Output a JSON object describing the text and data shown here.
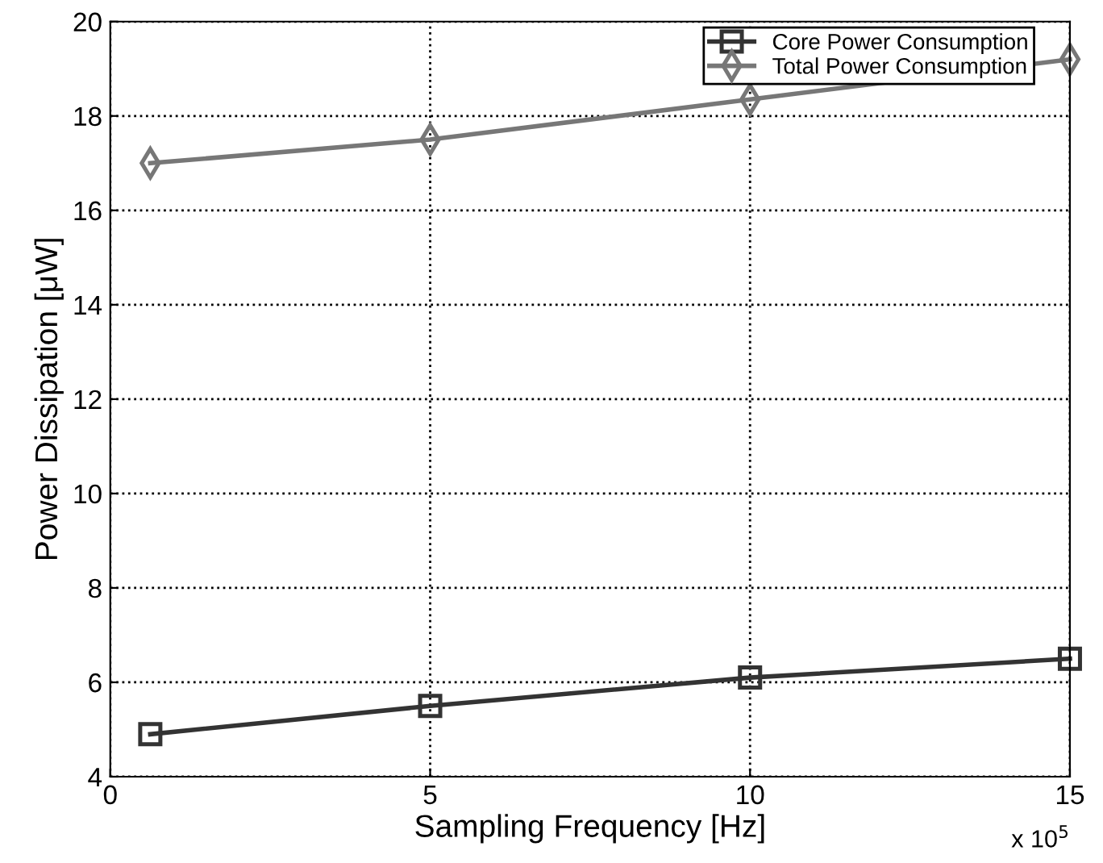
{
  "chart_data": {
    "type": "line",
    "xlabel": "Sampling Frequency [Hz]",
    "ylabel": "Power Dissipation [μW]",
    "x": [
      0.625,
      5,
      10,
      15
    ],
    "series": [
      {
        "name": "Core Power Consumption",
        "color": "#333333",
        "marker": "square",
        "values": [
          4.9,
          5.5,
          6.1,
          6.5
        ]
      },
      {
        "name": "Total Power Consumption",
        "color": "#777777",
        "marker": "diamond",
        "values": [
          17.0,
          17.5,
          18.35,
          19.2
        ]
      }
    ],
    "xlim": [
      0,
      15
    ],
    "xticks": [
      0,
      5,
      10,
      15
    ],
    "ylim": [
      4,
      20
    ],
    "yticks": [
      4,
      6,
      8,
      10,
      12,
      14,
      16,
      18,
      20
    ],
    "annotations": [
      "x 10$^{5}$"
    ],
    "grid": true,
    "legend": "top right",
    "line_style": "solid"
  }
}
